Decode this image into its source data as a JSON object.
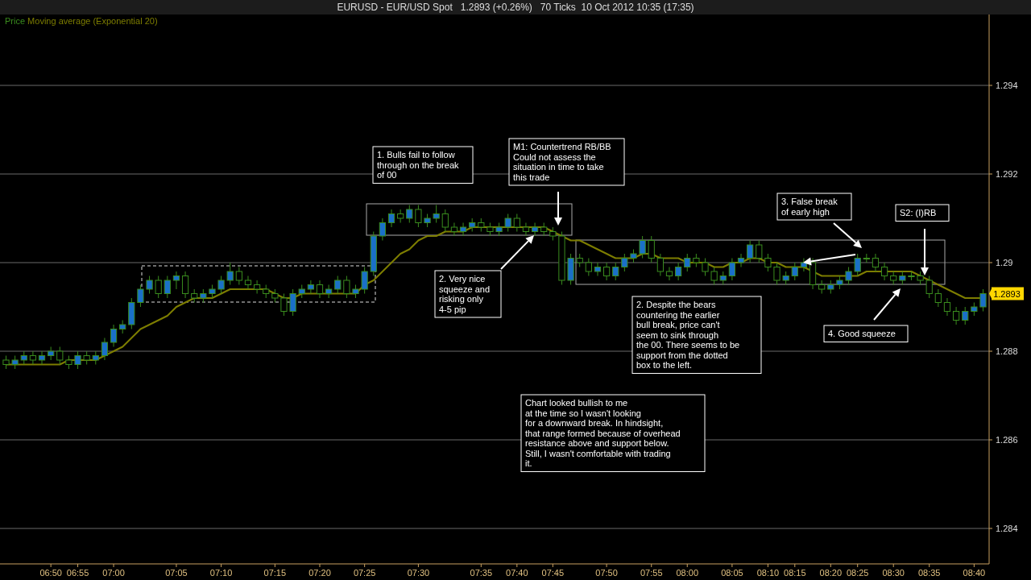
{
  "chart_data": {
    "type": "candlestick",
    "title": "EURUSD - EUR/USD Spot   1.2893 (+0.26%)   70 Ticks  10 Oct 2012 10:35 (17:35)",
    "categories": [
      null,
      null,
      null,
      null,
      null,
      "06:50",
      null,
      null,
      "06:55",
      null,
      null,
      null,
      "07:00",
      null,
      null,
      null,
      null,
      null,
      null,
      "07:05",
      null,
      null,
      null,
      null,
      "07:10",
      null,
      null,
      null,
      null,
      null,
      "07:15",
      null,
      null,
      null,
      null,
      "07:20",
      null,
      null,
      null,
      null,
      "07:25",
      null,
      null,
      null,
      null,
      null,
      "07:30",
      null,
      null,
      null,
      null,
      null,
      null,
      "07:35",
      null,
      null,
      null,
      "07:40",
      null,
      null,
      null,
      "07:45",
      null,
      null,
      null,
      null,
      null,
      "07:50",
      null,
      null,
      null,
      null,
      "07:55",
      null,
      null,
      null,
      "08:00",
      null,
      null,
      null,
      null,
      "08:05",
      null,
      null,
      null,
      "08:10",
      null,
      null,
      "08:15",
      null,
      null,
      null,
      "08:20",
      null,
      null,
      "08:25",
      null,
      null,
      null,
      "08:30",
      null,
      null,
      null,
      "08:35",
      null,
      null,
      null,
      null,
      "08:40",
      null
    ],
    "series": [
      {
        "name": "Price",
        "type": "candlestick",
        "color": "#3a8c1e",
        "ohlc": [
          [
            1.2878,
            1.2879,
            1.2876,
            1.2877
          ],
          [
            1.2877,
            1.2879,
            1.2876,
            1.2878
          ],
          [
            1.2878,
            1.288,
            1.2877,
            1.2879
          ],
          [
            1.2879,
            1.288,
            1.2877,
            1.2878
          ],
          [
            1.2878,
            1.288,
            1.2877,
            1.2879
          ],
          [
            1.2879,
            1.2881,
            1.2878,
            1.288
          ],
          [
            1.288,
            1.2881,
            1.2877,
            1.2878
          ],
          [
            1.2878,
            1.2879,
            1.2876,
            1.2877
          ],
          [
            1.2877,
            1.288,
            1.2876,
            1.2879
          ],
          [
            1.2879,
            1.288,
            1.2877,
            1.2878
          ],
          [
            1.2878,
            1.288,
            1.2877,
            1.2879
          ],
          [
            1.2879,
            1.2883,
            1.2878,
            1.2882
          ],
          [
            1.2882,
            1.2886,
            1.2881,
            1.2885
          ],
          [
            1.2885,
            1.2887,
            1.2884,
            1.2886
          ],
          [
            1.2886,
            1.2892,
            1.2885,
            1.2891
          ],
          [
            1.2891,
            1.2895,
            1.289,
            1.2894
          ],
          [
            1.2894,
            1.2897,
            1.2893,
            1.2896
          ],
          [
            1.2896,
            1.2897,
            1.2892,
            1.2893
          ],
          [
            1.2893,
            1.2897,
            1.2892,
            1.2896
          ],
          [
            1.2896,
            1.2898,
            1.2894,
            1.2897
          ],
          [
            1.2897,
            1.2898,
            1.2892,
            1.2893
          ],
          [
            1.2893,
            1.2894,
            1.2891,
            1.2892
          ],
          [
            1.2892,
            1.2894,
            1.2891,
            1.2893
          ],
          [
            1.2893,
            1.2895,
            1.2892,
            1.2894
          ],
          [
            1.2894,
            1.2897,
            1.2893,
            1.2896
          ],
          [
            1.2896,
            1.29,
            1.2895,
            1.2898
          ],
          [
            1.2898,
            1.2899,
            1.2895,
            1.2896
          ],
          [
            1.2896,
            1.2897,
            1.2894,
            1.2895
          ],
          [
            1.2895,
            1.2896,
            1.2893,
            1.2894
          ],
          [
            1.2894,
            1.2895,
            1.2892,
            1.2893
          ],
          [
            1.2893,
            1.2894,
            1.2891,
            1.2892
          ],
          [
            1.2892,
            1.2893,
            1.2888,
            1.2889
          ],
          [
            1.2889,
            1.2894,
            1.2888,
            1.2893
          ],
          [
            1.2893,
            1.2895,
            1.2892,
            1.2894
          ],
          [
            1.2894,
            1.2896,
            1.2893,
            1.2895
          ],
          [
            1.2895,
            1.2896,
            1.2892,
            1.2893
          ],
          [
            1.2893,
            1.2895,
            1.2892,
            1.2894
          ],
          [
            1.2894,
            1.2897,
            1.2893,
            1.2896
          ],
          [
            1.2896,
            1.2897,
            1.2892,
            1.2893
          ],
          [
            1.2893,
            1.2895,
            1.2892,
            1.2894
          ],
          [
            1.2894,
            1.2899,
            1.2893,
            1.2898
          ],
          [
            1.2898,
            1.2907,
            1.2897,
            1.2906
          ],
          [
            1.2906,
            1.291,
            1.2905,
            1.2909
          ],
          [
            1.2909,
            1.2912,
            1.2908,
            1.2911
          ],
          [
            1.2911,
            1.2912,
            1.2909,
            1.291
          ],
          [
            1.291,
            1.2913,
            1.2909,
            1.2912
          ],
          [
            1.2912,
            1.2913,
            1.2908,
            1.2909
          ],
          [
            1.2909,
            1.2911,
            1.2908,
            1.291
          ],
          [
            1.291,
            1.2913,
            1.2909,
            1.2911
          ],
          [
            1.2911,
            1.2912,
            1.2907,
            1.2908
          ],
          [
            1.2908,
            1.2909,
            1.2906,
            1.2907
          ],
          [
            1.2907,
            1.2909,
            1.2906,
            1.2908
          ],
          [
            1.2908,
            1.291,
            1.2907,
            1.2909
          ],
          [
            1.2909,
            1.291,
            1.2907,
            1.2908
          ],
          [
            1.2908,
            1.2909,
            1.2906,
            1.2907
          ],
          [
            1.2907,
            1.2909,
            1.2906,
            1.2908
          ],
          [
            1.2908,
            1.2911,
            1.2907,
            1.291
          ],
          [
            1.291,
            1.2911,
            1.2907,
            1.2908
          ],
          [
            1.2908,
            1.2909,
            1.2906,
            1.2907
          ],
          [
            1.2907,
            1.2909,
            1.2906,
            1.2908
          ],
          [
            1.2908,
            1.2909,
            1.2906,
            1.2907
          ],
          [
            1.2907,
            1.2908,
            1.2905,
            1.2906
          ],
          [
            1.2906,
            1.2907,
            1.2895,
            1.2896
          ],
          [
            1.2896,
            1.2902,
            1.2895,
            1.2901
          ],
          [
            1.2901,
            1.2902,
            1.2899,
            1.29
          ],
          [
            1.29,
            1.2901,
            1.2897,
            1.2898
          ],
          [
            1.2898,
            1.29,
            1.2897,
            1.2899
          ],
          [
            1.2899,
            1.29,
            1.2896,
            1.2897
          ],
          [
            1.2897,
            1.29,
            1.2896,
            1.2899
          ],
          [
            1.2899,
            1.2902,
            1.2898,
            1.2901
          ],
          [
            1.2901,
            1.2903,
            1.29,
            1.2902
          ],
          [
            1.2902,
            1.2906,
            1.2901,
            1.2905
          ],
          [
            1.2905,
            1.2906,
            1.29,
            1.2901
          ],
          [
            1.2901,
            1.2902,
            1.2897,
            1.2898
          ],
          [
            1.2898,
            1.2899,
            1.2896,
            1.2897
          ],
          [
            1.2897,
            1.29,
            1.2896,
            1.2899
          ],
          [
            1.2899,
            1.2902,
            1.2898,
            1.2901
          ],
          [
            1.2901,
            1.2902,
            1.2899,
            1.29
          ],
          [
            1.29,
            1.2901,
            1.2897,
            1.2898
          ],
          [
            1.2898,
            1.2899,
            1.2895,
            1.2896
          ],
          [
            1.2896,
            1.2898,
            1.2895,
            1.2897
          ],
          [
            1.2897,
            1.2901,
            1.2896,
            1.29
          ],
          [
            1.29,
            1.2902,
            1.2899,
            1.2901
          ],
          [
            1.2901,
            1.2905,
            1.29,
            1.2904
          ],
          [
            1.2904,
            1.2905,
            1.29,
            1.2901
          ],
          [
            1.2901,
            1.2902,
            1.2898,
            1.2899
          ],
          [
            1.2899,
            1.29,
            1.2895,
            1.2896
          ],
          [
            1.2896,
            1.2898,
            1.2895,
            1.2897
          ],
          [
            1.2897,
            1.29,
            1.2896,
            1.2899
          ],
          [
            1.2899,
            1.2901,
            1.2898,
            1.29
          ],
          [
            1.29,
            1.2901,
            1.2894,
            1.2895
          ],
          [
            1.2895,
            1.2896,
            1.2893,
            1.2894
          ],
          [
            1.2894,
            1.2896,
            1.2893,
            1.2895
          ],
          [
            1.2895,
            1.2897,
            1.2894,
            1.2896
          ],
          [
            1.2896,
            1.2899,
            1.2895,
            1.2898
          ],
          [
            1.2898,
            1.2902,
            1.2897,
            1.2901
          ],
          [
            1.2901,
            1.2902,
            1.29,
            1.2901
          ],
          [
            1.2901,
            1.2902,
            1.2898,
            1.2899
          ],
          [
            1.2899,
            1.29,
            1.2896,
            1.2897
          ],
          [
            1.2897,
            1.2898,
            1.2895,
            1.2896
          ],
          [
            1.2896,
            1.2898,
            1.2895,
            1.2897
          ],
          [
            1.2897,
            1.2898,
            1.2896,
            1.2897
          ],
          [
            1.2897,
            1.2898,
            1.2895,
            1.2896
          ],
          [
            1.2896,
            1.2897,
            1.2892,
            1.2893
          ],
          [
            1.2893,
            1.2894,
            1.289,
            1.2891
          ],
          [
            1.2891,
            1.2892,
            1.2888,
            1.2889
          ],
          [
            1.2889,
            1.289,
            1.2886,
            1.2887
          ],
          [
            1.2887,
            1.289,
            1.2886,
            1.2889
          ],
          [
            1.2889,
            1.2891,
            1.2888,
            1.289
          ],
          [
            1.289,
            1.2894,
            1.2889,
            1.2893
          ]
        ]
      },
      {
        "name": "Moving average (Exponential 20)",
        "type": "line",
        "color": "#7d7d00",
        "values": [
          1.2877,
          1.2877,
          1.2877,
          1.2877,
          1.2877,
          1.2877,
          1.2877,
          1.2878,
          1.2878,
          1.2878,
          1.2878,
          1.2879,
          1.288,
          1.2881,
          1.2883,
          1.2885,
          1.2886,
          1.2887,
          1.2888,
          1.289,
          1.2891,
          1.2892,
          1.2892,
          1.2892,
          1.2893,
          1.2894,
          1.2894,
          1.2894,
          1.2894,
          1.2894,
          1.2893,
          1.2892,
          1.2892,
          1.2893,
          1.2893,
          1.2893,
          1.2893,
          1.2893,
          1.2893,
          1.2893,
          1.2895,
          1.2896,
          1.2898,
          1.29,
          1.2902,
          1.2903,
          1.2905,
          1.2906,
          1.2906,
          1.2907,
          1.2907,
          1.2907,
          1.2908,
          1.2908,
          1.2908,
          1.2908,
          1.2908,
          1.2908,
          1.2908,
          1.2908,
          1.2908,
          1.2907,
          1.2906,
          1.2905,
          1.2905,
          1.2904,
          1.2903,
          1.2902,
          1.2901,
          1.2901,
          1.2901,
          1.2902,
          1.2902,
          1.2901,
          1.2901,
          1.2901,
          1.29,
          1.29,
          1.29,
          1.2899,
          1.2899,
          1.29,
          1.29,
          1.2901,
          1.2901,
          1.29,
          1.29,
          1.2899,
          1.2899,
          1.2899,
          1.2898,
          1.2897,
          1.2897,
          1.2897,
          1.2897,
          1.2897,
          1.2898,
          1.2898,
          1.2898,
          1.2898,
          1.2898,
          1.2898,
          1.2897,
          1.2896,
          1.2895,
          1.2894,
          1.2893,
          1.2892,
          1.2892,
          1.2892
        ]
      }
    ],
    "ylim": [
      1.2832,
      1.2956
    ],
    "yticks": [
      1.284,
      1.286,
      1.288,
      1.29,
      1.292,
      1.294
    ],
    "grid": "y",
    "legend": "top left",
    "annotations": [
      "1. Bulls fail to follow\nthrough on the break\nof 00",
      "M1: Countertrend RB/BB\nCould not assess the\nsituation in time to take\nthis trade",
      "2. Very nice\nsqueeze and\nrisking only\n4-5 pip",
      "3. False break\nof early high",
      "S2: (I)RB",
      "2. Despite the bears\ncountering the earlier\nbull break, price can't\nseem to sink through\nthe 00. There seems to be\nsupport from the dotted\nbox to the left.",
      "4. Good squeeze",
      "Chart looked bullish to me\nat the time so I wasn't looking\nfor a downward break. In hindsight,\nthat range formed because of overhead\nresistance above and support below.\nStill, I wasn't comfortable with trading\nit.",
      {
        "text": "1.2893",
        "y": 1.2893
      }
    ]
  }
}
